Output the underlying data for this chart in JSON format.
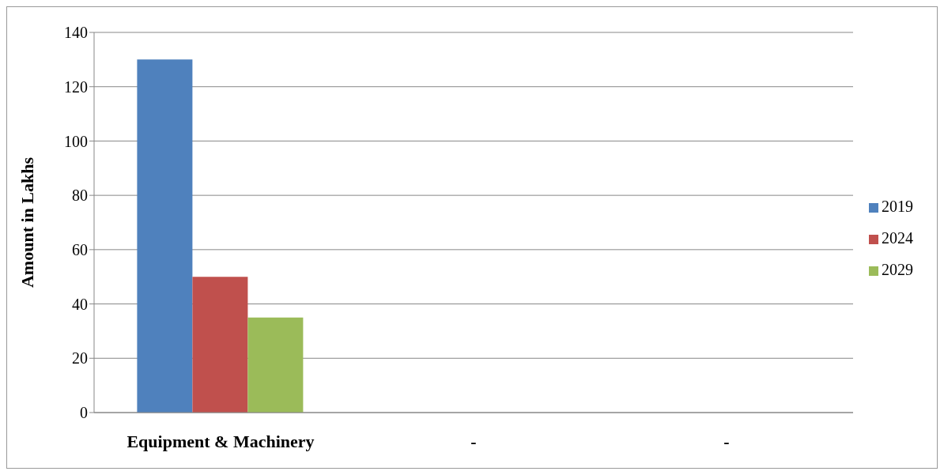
{
  "chart_data": {
    "type": "bar",
    "ylabel": "Amount in Lakhs",
    "categories": [
      "Equipment & Machinery",
      "-",
      "-"
    ],
    "series": [
      {
        "name": "2019",
        "color": "#4f81bd",
        "values": [
          130,
          null,
          null
        ]
      },
      {
        "name": "2024",
        "color": "#c0504d",
        "values": [
          50,
          null,
          null
        ]
      },
      {
        "name": "2029",
        "color": "#9bbb59",
        "values": [
          35,
          null,
          null
        ]
      }
    ],
    "ylim": [
      0,
      140
    ],
    "yticks": [
      0,
      20,
      40,
      60,
      80,
      100,
      120,
      140
    ],
    "grid": "y",
    "legend": "right"
  }
}
